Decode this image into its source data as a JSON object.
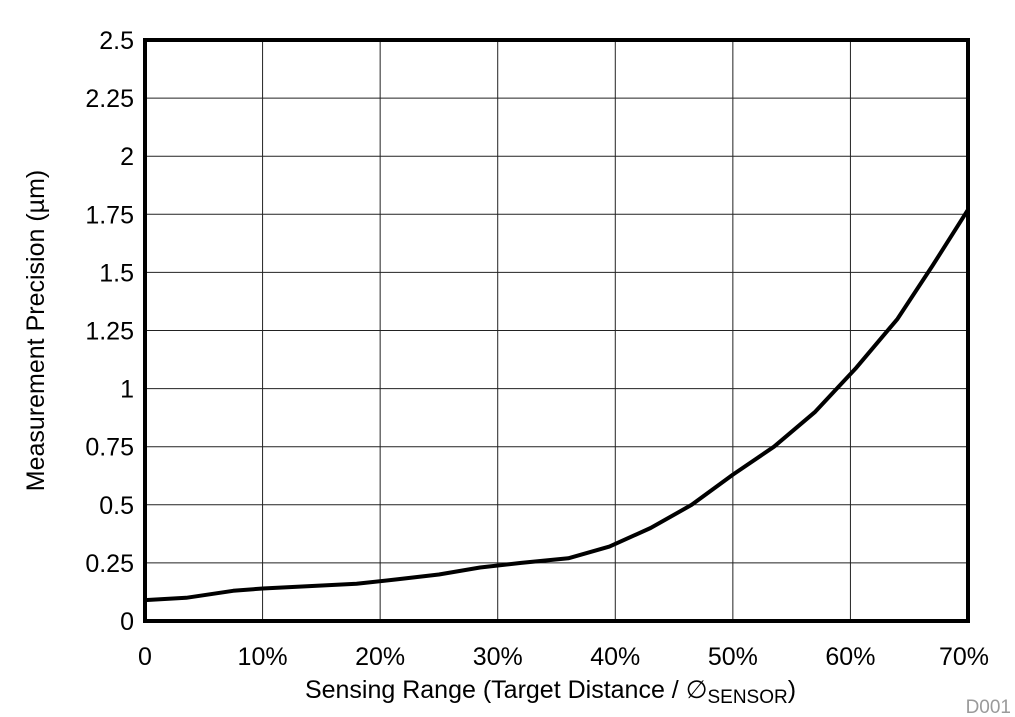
{
  "chart_data": {
    "type": "line",
    "title": "",
    "xlabel_main": "Sensing Range (Target Distance / ",
    "xlabel_symbol": "∅",
    "xlabel_subscript": "SENSOR",
    "xlabel_close": ")",
    "ylabel": "Measurement Precision (µm)",
    "figure_code": "D001",
    "xlim": [
      0,
      70
    ],
    "ylim": [
      0,
      2.5
    ],
    "x_ticks": [
      0,
      10,
      20,
      30,
      40,
      50,
      60,
      70
    ],
    "x_tick_labels": [
      "0",
      "10%",
      "20%",
      "30%",
      "40%",
      "50%",
      "60%",
      "70%"
    ],
    "y_ticks": [
      0,
      0.25,
      0.5,
      0.75,
      1,
      1.25,
      1.5,
      1.75,
      2,
      2.25,
      2.5
    ],
    "y_tick_labels": [
      "0",
      "0.25",
      "0.5",
      "0.75",
      "1",
      "1.25",
      "1.5",
      "1.75",
      "2",
      "2.25",
      "2.5"
    ],
    "grid": true,
    "series": [
      {
        "color": "#000000",
        "x": [
          0,
          3.5,
          7.5,
          10,
          14,
          18,
          21.5,
          25,
          28.5,
          32,
          36,
          39.5,
          43,
          46.5,
          50,
          53.5,
          57,
          60.5,
          64,
          67,
          70
        ],
        "y": [
          0.09,
          0.1,
          0.13,
          0.14,
          0.15,
          0.16,
          0.18,
          0.2,
          0.23,
          0.25,
          0.27,
          0.32,
          0.4,
          0.5,
          0.63,
          0.75,
          0.9,
          1.09,
          1.3,
          1.53,
          1.77
        ]
      }
    ]
  }
}
